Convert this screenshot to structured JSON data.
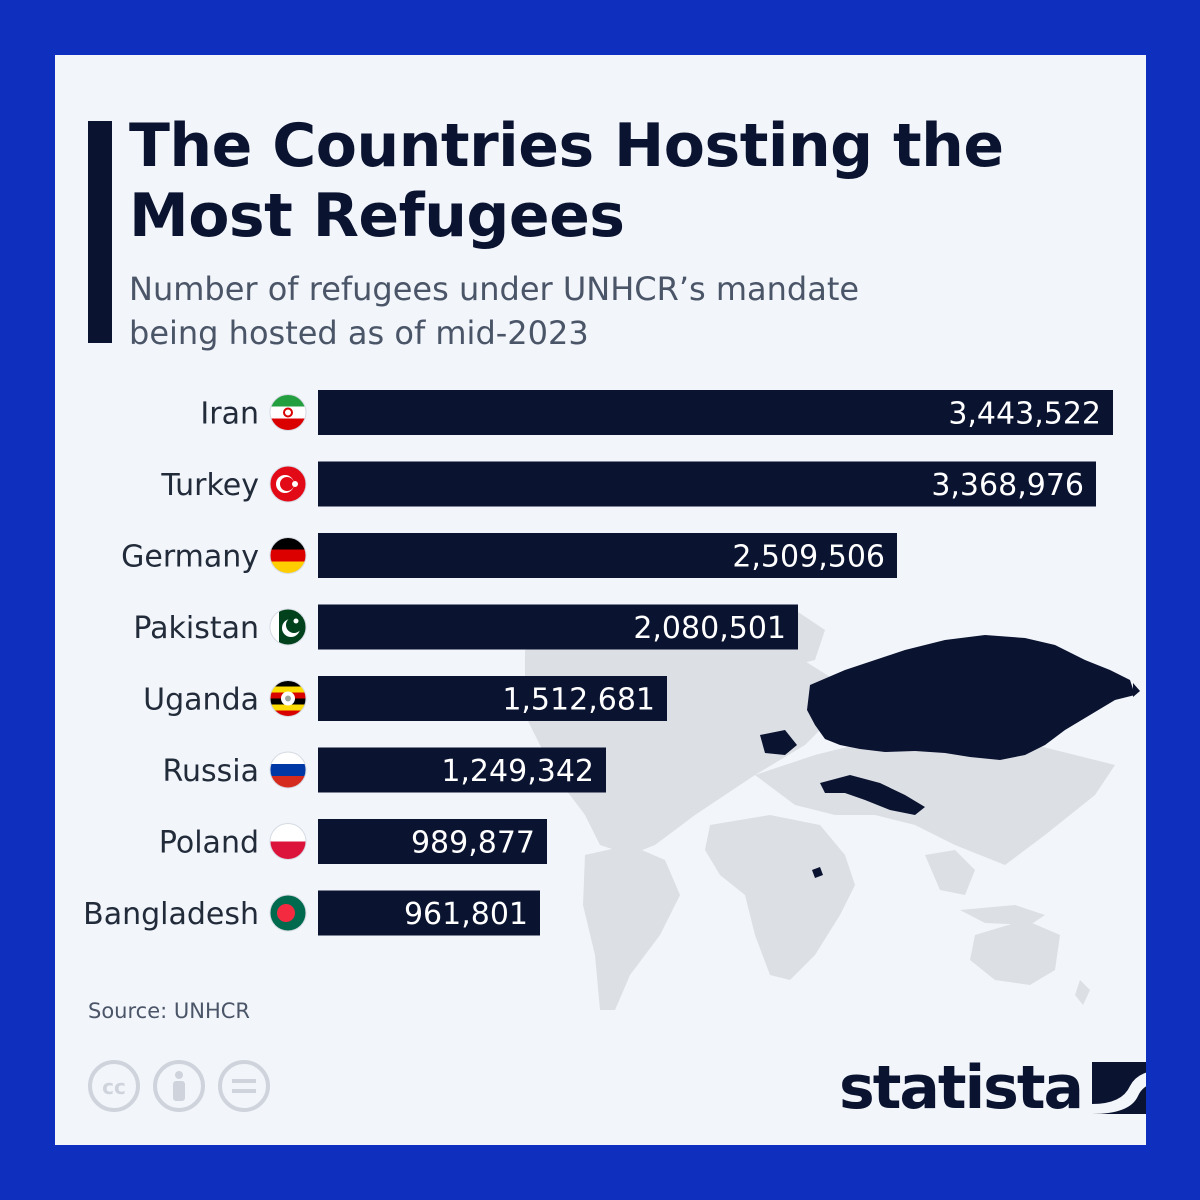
{
  "colors": {
    "frame": "#0f2fbf",
    "background": "#f2f5fa",
    "bar": "#0a1330",
    "bar_label": "#ffffff",
    "map": "#dcdfe4",
    "map_highlight": "#0a1330"
  },
  "icons": [
    "cc-icon",
    "person-icon",
    "equals-icon",
    "statista-logo-icon"
  ],
  "chart_data": {
    "type": "bar",
    "orientation": "horizontal",
    "title": "The Countries Hosting the Most Refugees",
    "subtitle": "Number of refugees under UNHCR’s mandate being hosted as of mid-2023",
    "categories": [
      "Iran",
      "Turkey",
      "Germany",
      "Pakistan",
      "Uganda",
      "Russia",
      "Poland",
      "Bangladesh"
    ],
    "values": [
      3443522,
      3368976,
      2509506,
      2080501,
      1512681,
      1249342,
      989877,
      961801
    ],
    "value_labels": [
      "3,443,522",
      "3,368,976",
      "2,509,506",
      "2,080,501",
      "1,512,681",
      "1,249,342",
      "989,877",
      "961,801"
    ],
    "flags": [
      "flag-iran-icon",
      "flag-turkey-icon",
      "flag-germany-icon",
      "flag-pakistan-icon",
      "flag-uganda-icon",
      "flag-russia-icon",
      "flag-poland-icon",
      "flag-bangladesh-icon"
    ],
    "xlim": [
      0,
      3443522
    ],
    "grid": false,
    "legend": false
  },
  "footer": {
    "source": "Source: UNHCR",
    "brand": "statista"
  }
}
